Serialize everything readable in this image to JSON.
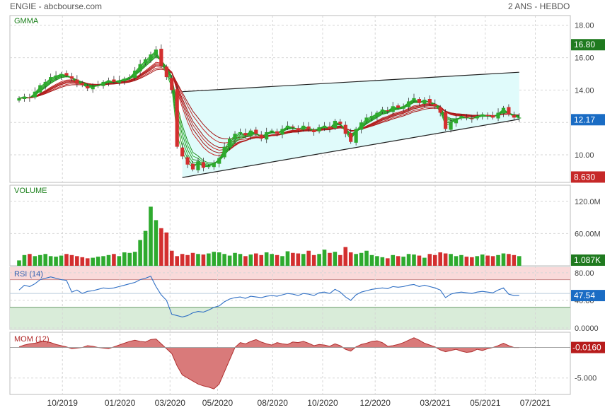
{
  "header": {
    "left": "ENGIE - abcbourse.com",
    "right": "2 ANS - HEBDO"
  },
  "chart_data": [
    {
      "type": "candlestick",
      "panel": "price",
      "title": "GMMA",
      "ylim": [
        8.3,
        18.6
      ],
      "yticks": [
        "18.00",
        "16.00",
        "14.00",
        "12.00",
        "10.00"
      ],
      "ytick_values": [
        18,
        16,
        14,
        12,
        10
      ],
      "badges": [
        {
          "label": "16.80",
          "value": 16.8,
          "color": "#1f7a1f"
        },
        {
          "label": "12.17",
          "value": 12.17,
          "color": "#1a6cc4"
        },
        {
          "label": "8.630",
          "value": 8.63,
          "color": "#c62828"
        }
      ],
      "closes": [
        13.5,
        13.6,
        13.5,
        13.9,
        14.3,
        14.5,
        14.8,
        14.9,
        15.0,
        14.9,
        14.7,
        14.4,
        14.3,
        14.1,
        14.2,
        14.3,
        14.5,
        14.6,
        14.5,
        14.6,
        14.7,
        14.8,
        15.2,
        15.6,
        15.9,
        16.2,
        16.5,
        15.5,
        14.8,
        14.0,
        10.5,
        9.9,
        9.4,
        9.1,
        9.6,
        9.2,
        9.3,
        9.5,
        9.8,
        10.5,
        11.0,
        11.3,
        11.4,
        11.2,
        11.5,
        11.3,
        11.0,
        11.4,
        11.5,
        11.3,
        11.6,
        11.8,
        11.7,
        11.5,
        11.8,
        11.6,
        11.4,
        11.7,
        11.8,
        11.6,
        12.1,
        11.9,
        11.3,
        10.8,
        11.6,
        12.0,
        12.3,
        12.4,
        12.6,
        12.8,
        12.7,
        13.0,
        12.9,
        13.0,
        13.3,
        13.5,
        13.2,
        13.4,
        13.2,
        13.0,
        12.6,
        11.6,
        12.0,
        12.2,
        12.4,
        12.3,
        12.2,
        12.4,
        12.5,
        12.4,
        12.3,
        12.6,
        12.9,
        12.5,
        12.3,
        12.3
      ],
      "channel": {
        "upper": [
          13.9,
          15.1
        ],
        "lower": [
          8.6,
          12.2
        ]
      }
    },
    {
      "type": "bar",
      "panel": "volume",
      "title": "VOLUME",
      "ylim": [
        0,
        150
      ],
      "yticks": [
        "120.0M",
        "60.00M"
      ],
      "ytick_values": [
        120,
        60
      ],
      "badge": "1.087K",
      "values": [
        10,
        20,
        22,
        18,
        20,
        22,
        18,
        17,
        19,
        22,
        20,
        18,
        16,
        14,
        15,
        17,
        18,
        20,
        22,
        18,
        25,
        24,
        26,
        48,
        65,
        110,
        85,
        70,
        62,
        28,
        18,
        22,
        20,
        24,
        22,
        21,
        23,
        26,
        25,
        22,
        19,
        24,
        22,
        18,
        21,
        23,
        20,
        25,
        22,
        20,
        18,
        27,
        24,
        23,
        22,
        28,
        20,
        22,
        30,
        24,
        26,
        20,
        35,
        25,
        22,
        24,
        28,
        20,
        18,
        16,
        14,
        20,
        18,
        17,
        22,
        21,
        19,
        15,
        22,
        20,
        25,
        23,
        22,
        18,
        20,
        17,
        16,
        18,
        21,
        19,
        18,
        20,
        23,
        22,
        20,
        18
      ]
    },
    {
      "type": "line",
      "panel": "rsi",
      "title": "RSI (14)",
      "ylim": [
        -2,
        88
      ],
      "yticks": [
        "80.00",
        "40.00",
        "0.0000"
      ],
      "ytick_values": [
        80,
        40,
        0
      ],
      "badge": "47.54",
      "values": [
        55,
        62,
        60,
        64,
        70,
        72,
        74,
        72,
        70,
        69,
        52,
        55,
        50,
        53,
        54,
        56,
        58,
        57,
        58,
        60,
        62,
        64,
        66,
        70,
        72,
        75,
        60,
        48,
        40,
        20,
        18,
        16,
        18,
        22,
        24,
        23,
        26,
        30,
        32,
        38,
        42,
        44,
        45,
        43,
        46,
        45,
        44,
        46,
        47,
        46,
        48,
        50,
        49,
        47,
        50,
        49,
        47,
        51,
        52,
        50,
        56,
        52,
        45,
        40,
        48,
        52,
        54,
        56,
        57,
        58,
        57,
        60,
        59,
        60,
        62,
        63,
        60,
        62,
        60,
        58,
        55,
        44,
        49,
        51,
        52,
        51,
        50,
        52,
        53,
        52,
        51,
        55,
        58,
        49,
        47,
        47
      ]
    },
    {
      "type": "area",
      "panel": "momentum",
      "title": "MOM (12)",
      "ylim": [
        -7.7,
        2.5
      ],
      "yticks": [
        "-5.000"
      ],
      "ytick_values": [
        -5
      ],
      "badge": "-0.0160",
      "values": [
        0.1,
        0.4,
        0.6,
        0.7,
        0.9,
        1.0,
        0.8,
        0.5,
        0.3,
        0.1,
        -0.2,
        -0.1,
        0.0,
        0.3,
        0.2,
        0.0,
        -0.1,
        -0.2,
        0.1,
        0.4,
        0.7,
        1.0,
        1.2,
        1.0,
        0.9,
        1.3,
        1.4,
        0.6,
        -0.2,
        -1.0,
        -3.0,
        -4.5,
        -5.0,
        -5.5,
        -6.0,
        -6.3,
        -6.5,
        -6.8,
        -6.0,
        -4.0,
        -2.0,
        0.0,
        0.8,
        0.6,
        1.0,
        1.3,
        0.9,
        0.6,
        0.4,
        0.8,
        0.6,
        0.5,
        0.9,
        0.8,
        1.0,
        0.7,
        0.3,
        0.5,
        0.4,
        0.2,
        0.6,
        0.3,
        -0.3,
        -0.6,
        0.1,
        0.5,
        0.7,
        1.0,
        1.1,
        0.8,
        0.2,
        0.3,
        0.5,
        0.8,
        1.2,
        1.6,
        1.2,
        0.7,
        0.4,
        0.1,
        -0.4,
        -0.7,
        -0.5,
        -0.3,
        -0.6,
        -0.8,
        -0.7,
        -0.3,
        -0.5,
        -0.2,
        0.0,
        0.3,
        0.7,
        0.3,
        0.0,
        0.0
      ]
    }
  ],
  "x_axis": {
    "labels": [
      "10/2019",
      "01/2020",
      "03/2020",
      "05/2020",
      "08/2020",
      "10/2020",
      "12/2020",
      "03/2021",
      "05/2021",
      "07/2021"
    ],
    "positions": [
      10.5,
      22,
      32,
      41.5,
      52.5,
      62.5,
      73,
      85,
      95,
      105
    ]
  },
  "colors": {
    "up": "#2eaa2e",
    "down": "#d32f2f",
    "grid": "#d6d6d6",
    "channel_fill": "#e0fbfb",
    "rsi_line": "#2f6fc4",
    "rsi_overbought": "#f9dada",
    "rsi_oversold": "#d9ecd9",
    "mom_fill": "#d97a7a"
  }
}
